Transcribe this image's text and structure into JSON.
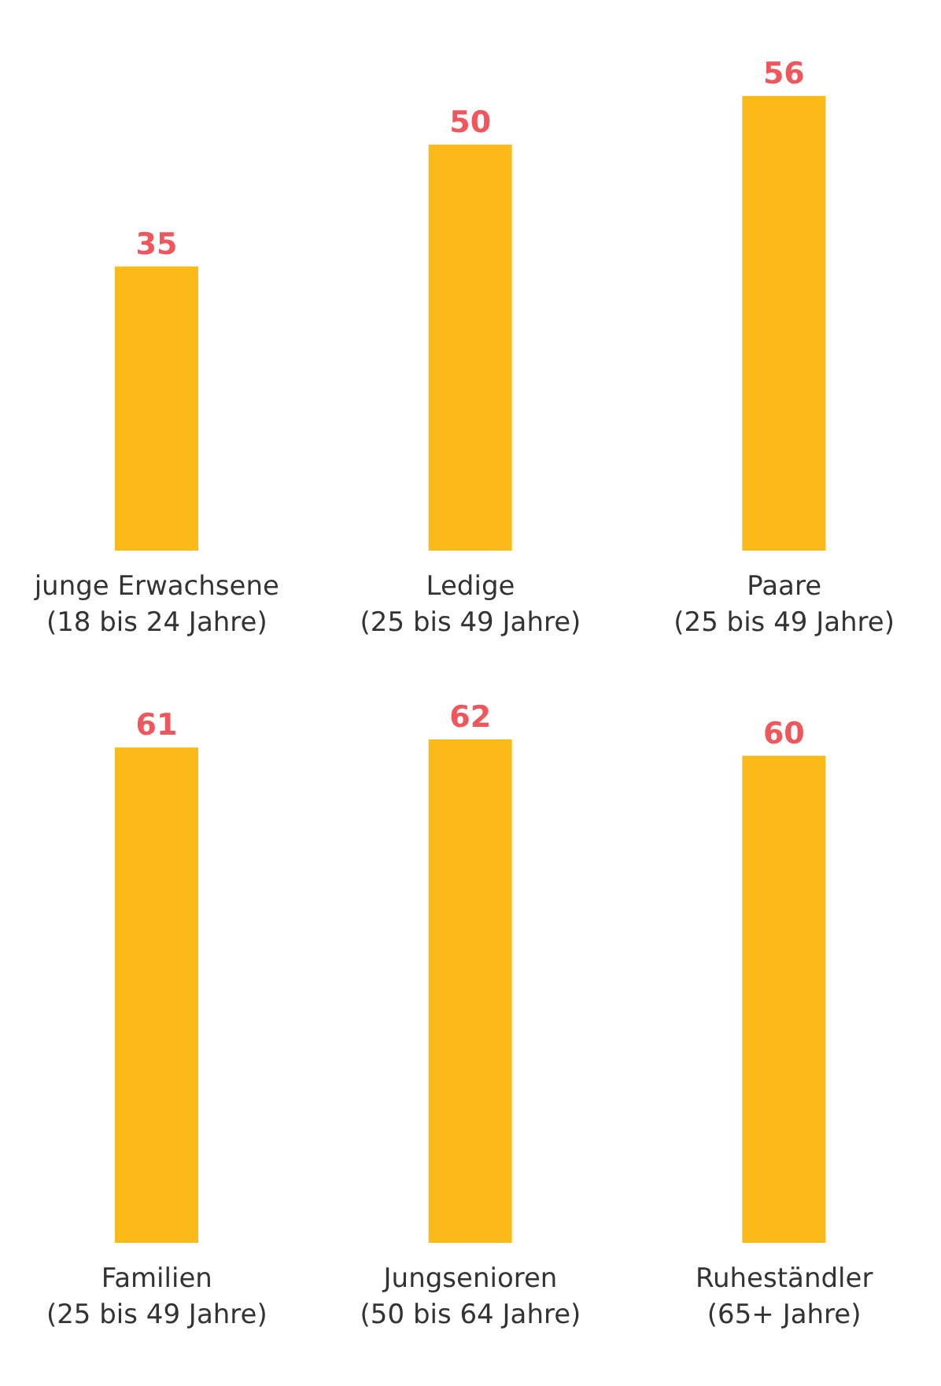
{
  "chart_data": [
    {
      "type": "bar",
      "categories": [
        "junge Erwachsene (18 bis 24 Jahre)",
        "Ledige (25 bis 49 Jahre)",
        "Paare (25 bis 49 Jahre)"
      ],
      "values": [
        35,
        50,
        56
      ],
      "color": "#fbba17",
      "data_labels": true
    },
    {
      "type": "bar",
      "categories": [
        "Familien (25 bis 49 Jahre)",
        "Jungsenioren (50 bis 64 Jahre)",
        "Ruheständler (65+ Jahre)"
      ],
      "values": [
        61,
        62,
        60
      ],
      "color": "#fbba17",
      "data_labels": true
    }
  ]
}
